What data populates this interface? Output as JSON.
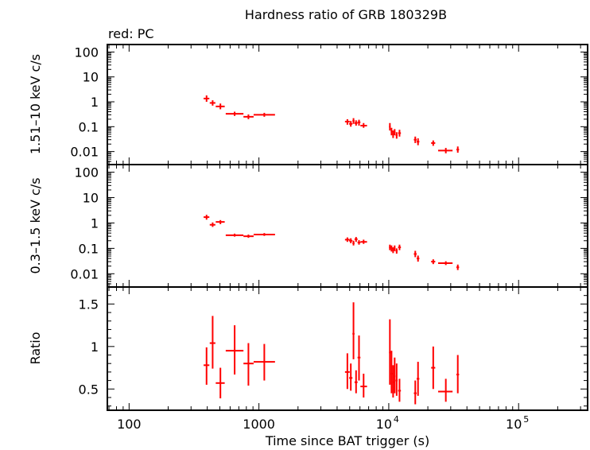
{
  "figure": {
    "title": "Hardness ratio of GRB 180329B",
    "legend_note": "red: PC",
    "xlabel": "Time since BAT trigger (s)"
  },
  "chart_data": [
    {
      "type": "scatter",
      "panel": "hard",
      "ylabel": "1.51–10 keV c/s",
      "xscale": "log",
      "yscale": "log",
      "xlim": [
        68,
        340000
      ],
      "ylim": [
        0.003,
        200
      ],
      "yticks": [
        {
          "value": 100,
          "label": "100"
        },
        {
          "value": 10,
          "label": "10"
        },
        {
          "value": 1,
          "label": "1"
        },
        {
          "value": 0.1,
          "label": "0.1"
        },
        {
          "value": 0.01,
          "label": "0.01"
        }
      ],
      "color": "#ff0000",
      "series": [
        {
          "points": [
            {
              "x": 395,
              "xlo": 375,
              "xhi": 415,
              "y": 1.35,
              "ylo": 1.0,
              "yhi": 1.8
            },
            {
              "x": 440,
              "xlo": 418,
              "xhi": 462,
              "y": 0.9,
              "ylo": 0.7,
              "yhi": 1.15
            },
            {
              "x": 505,
              "xlo": 465,
              "xhi": 545,
              "y": 0.65,
              "ylo": 0.5,
              "yhi": 0.85
            },
            {
              "x": 650,
              "xlo": 555,
              "xhi": 760,
              "y": 0.33,
              "ylo": 0.27,
              "yhi": 0.4
            },
            {
              "x": 830,
              "xlo": 760,
              "xhi": 910,
              "y": 0.25,
              "ylo": 0.2,
              "yhi": 0.31
            },
            {
              "x": 1100,
              "xlo": 910,
              "xhi": 1330,
              "y": 0.3,
              "ylo": 0.25,
              "yhi": 0.36
            },
            {
              "x": 4800,
              "xlo": 4600,
              "xhi": 5000,
              "y": 0.16,
              "ylo": 0.12,
              "yhi": 0.2
            },
            {
              "x": 5100,
              "xlo": 4950,
              "xhi": 5250,
              "y": 0.13,
              "ylo": 0.1,
              "yhi": 0.17
            },
            {
              "x": 5350,
              "xlo": 5250,
              "xhi": 5450,
              "y": 0.17,
              "ylo": 0.13,
              "yhi": 0.22
            },
            {
              "x": 5600,
              "xlo": 5450,
              "xhi": 5750,
              "y": 0.14,
              "ylo": 0.11,
              "yhi": 0.18
            },
            {
              "x": 5900,
              "xlo": 5750,
              "xhi": 6050,
              "y": 0.15,
              "ylo": 0.11,
              "yhi": 0.19
            },
            {
              "x": 6400,
              "xlo": 6050,
              "xhi": 6800,
              "y": 0.11,
              "ylo": 0.09,
              "yhi": 0.14
            },
            {
              "x": 10200,
              "xlo": 10050,
              "xhi": 10350,
              "y": 0.1,
              "ylo": 0.07,
              "yhi": 0.14
            },
            {
              "x": 10500,
              "xlo": 10350,
              "xhi": 10650,
              "y": 0.065,
              "ylo": 0.045,
              "yhi": 0.09
            },
            {
              "x": 10800,
              "xlo": 10650,
              "xhi": 10950,
              "y": 0.05,
              "ylo": 0.035,
              "yhi": 0.07
            },
            {
              "x": 11100,
              "xlo": 10950,
              "xhi": 11250,
              "y": 0.06,
              "ylo": 0.045,
              "yhi": 0.08
            },
            {
              "x": 11500,
              "xlo": 11300,
              "xhi": 11700,
              "y": 0.045,
              "ylo": 0.033,
              "yhi": 0.06
            },
            {
              "x": 12100,
              "xlo": 11800,
              "xhi": 12400,
              "y": 0.055,
              "ylo": 0.04,
              "yhi": 0.075
            },
            {
              "x": 16000,
              "xlo": 15600,
              "xhi": 16400,
              "y": 0.03,
              "ylo": 0.022,
              "yhi": 0.04
            },
            {
              "x": 16800,
              "xlo": 16400,
              "xhi": 17200,
              "y": 0.025,
              "ylo": 0.018,
              "yhi": 0.034
            },
            {
              "x": 22000,
              "xlo": 21200,
              "xhi": 22800,
              "y": 0.022,
              "ylo": 0.017,
              "yhi": 0.028
            },
            {
              "x": 27500,
              "xlo": 24000,
              "xhi": 31000,
              "y": 0.011,
              "ylo": 0.0085,
              "yhi": 0.014
            },
            {
              "x": 34000,
              "xlo": 33200,
              "xhi": 34800,
              "y": 0.012,
              "ylo": 0.009,
              "yhi": 0.016
            }
          ]
        }
      ]
    },
    {
      "type": "scatter",
      "panel": "soft",
      "ylabel": "0.3–1.5 keV c/s",
      "xscale": "log",
      "yscale": "log",
      "xlim": [
        68,
        340000
      ],
      "ylim": [
        0.003,
        200
      ],
      "yticks": [
        {
          "value": 100,
          "label": "100"
        },
        {
          "value": 10,
          "label": "10"
        },
        {
          "value": 1,
          "label": "1"
        },
        {
          "value": 0.1,
          "label": "0.1"
        },
        {
          "value": 0.01,
          "label": "0.01"
        }
      ],
      "color": "#ff0000",
      "series": [
        {
          "points": [
            {
              "x": 395,
              "xlo": 375,
              "xhi": 415,
              "y": 1.7,
              "ylo": 1.35,
              "yhi": 2.1
            },
            {
              "x": 440,
              "xlo": 418,
              "xhi": 462,
              "y": 0.85,
              "ylo": 0.7,
              "yhi": 1.05
            },
            {
              "x": 505,
              "xlo": 465,
              "xhi": 545,
              "y": 1.1,
              "ylo": 0.9,
              "yhi": 1.3
            },
            {
              "x": 650,
              "xlo": 555,
              "xhi": 760,
              "y": 0.33,
              "ylo": 0.29,
              "yhi": 0.38
            },
            {
              "x": 830,
              "xlo": 760,
              "xhi": 910,
              "y": 0.3,
              "ylo": 0.26,
              "yhi": 0.35
            },
            {
              "x": 1100,
              "xlo": 910,
              "xhi": 1330,
              "y": 0.35,
              "ylo": 0.31,
              "yhi": 0.4
            },
            {
              "x": 4800,
              "xlo": 4600,
              "xhi": 5000,
              "y": 0.22,
              "ylo": 0.18,
              "yhi": 0.27
            },
            {
              "x": 5100,
              "xlo": 4950,
              "xhi": 5250,
              "y": 0.2,
              "ylo": 0.16,
              "yhi": 0.25
            },
            {
              "x": 5350,
              "xlo": 5250,
              "xhi": 5450,
              "y": 0.16,
              "ylo": 0.13,
              "yhi": 0.2
            },
            {
              "x": 5600,
              "xlo": 5450,
              "xhi": 5750,
              "y": 0.23,
              "ylo": 0.18,
              "yhi": 0.28
            },
            {
              "x": 5900,
              "xlo": 5750,
              "xhi": 6050,
              "y": 0.17,
              "ylo": 0.14,
              "yhi": 0.21
            },
            {
              "x": 6400,
              "xlo": 6050,
              "xhi": 6800,
              "y": 0.18,
              "ylo": 0.15,
              "yhi": 0.22
            },
            {
              "x": 10200,
              "xlo": 10050,
              "xhi": 10350,
              "y": 0.11,
              "ylo": 0.085,
              "yhi": 0.14
            },
            {
              "x": 10500,
              "xlo": 10350,
              "xhi": 10650,
              "y": 0.1,
              "ylo": 0.075,
              "yhi": 0.13
            },
            {
              "x": 10800,
              "xlo": 10650,
              "xhi": 10950,
              "y": 0.085,
              "ylo": 0.065,
              "yhi": 0.11
            },
            {
              "x": 11100,
              "xlo": 10950,
              "xhi": 11250,
              "y": 0.1,
              "ylo": 0.078,
              "yhi": 0.13
            },
            {
              "x": 11500,
              "xlo": 11300,
              "xhi": 11700,
              "y": 0.08,
              "ylo": 0.062,
              "yhi": 0.1
            },
            {
              "x": 12100,
              "xlo": 11800,
              "xhi": 12400,
              "y": 0.11,
              "ylo": 0.085,
              "yhi": 0.14
            },
            {
              "x": 16000,
              "xlo": 15600,
              "xhi": 16400,
              "y": 0.06,
              "ylo": 0.045,
              "yhi": 0.08
            },
            {
              "x": 16800,
              "xlo": 16400,
              "xhi": 17200,
              "y": 0.04,
              "ylo": 0.03,
              "yhi": 0.052
            },
            {
              "x": 22000,
              "xlo": 21200,
              "xhi": 22800,
              "y": 0.03,
              "ylo": 0.024,
              "yhi": 0.037
            },
            {
              "x": 27500,
              "xlo": 24000,
              "xhi": 31000,
              "y": 0.026,
              "ylo": 0.022,
              "yhi": 0.031
            },
            {
              "x": 34000,
              "xlo": 33200,
              "xhi": 34800,
              "y": 0.018,
              "ylo": 0.014,
              "yhi": 0.023
            }
          ]
        }
      ]
    },
    {
      "type": "scatter",
      "panel": "ratio",
      "ylabel": "Ratio",
      "xscale": "log",
      "yscale": "linear",
      "xlim": [
        68,
        340000
      ],
      "ylim": [
        0.25,
        1.7
      ],
      "yticks": [
        {
          "value": 1.5,
          "label": "1.5"
        },
        {
          "value": 1,
          "label": "1"
        },
        {
          "value": 0.5,
          "label": "0.5"
        }
      ],
      "xticks": [
        {
          "value": 100,
          "label": "100"
        },
        {
          "value": 1000,
          "label": "1000"
        },
        {
          "value": 10000,
          "base": "10",
          "exp": "4"
        },
        {
          "value": 100000,
          "base": "10",
          "exp": "5"
        }
      ],
      "color": "#ff0000",
      "series": [
        {
          "points": [
            {
              "x": 395,
              "xlo": 375,
              "xhi": 415,
              "y": 0.78,
              "ylo": 0.55,
              "yhi": 0.99
            },
            {
              "x": 440,
              "xlo": 418,
              "xhi": 462,
              "y": 1.04,
              "ylo": 0.74,
              "yhi": 1.36
            },
            {
              "x": 505,
              "xlo": 465,
              "xhi": 545,
              "y": 0.57,
              "ylo": 0.39,
              "yhi": 0.75
            },
            {
              "x": 650,
              "xlo": 555,
              "xhi": 760,
              "y": 0.95,
              "ylo": 0.67,
              "yhi": 1.25
            },
            {
              "x": 830,
              "xlo": 760,
              "xhi": 910,
              "y": 0.8,
              "ylo": 0.54,
              "yhi": 1.04
            },
            {
              "x": 1100,
              "xlo": 910,
              "xhi": 1330,
              "y": 0.82,
              "ylo": 0.6,
              "yhi": 1.03
            },
            {
              "x": 4800,
              "xlo": 4600,
              "xhi": 5000,
              "y": 0.7,
              "ylo": 0.5,
              "yhi": 0.92
            },
            {
              "x": 5100,
              "xlo": 4950,
              "xhi": 5250,
              "y": 0.63,
              "ylo": 0.48,
              "yhi": 0.8
            },
            {
              "x": 5350,
              "xlo": 5250,
              "xhi": 5450,
              "y": 1.15,
              "ylo": 0.85,
              "yhi": 1.52
            },
            {
              "x": 5600,
              "xlo": 5450,
              "xhi": 5750,
              "y": 0.58,
              "ylo": 0.45,
              "yhi": 0.72
            },
            {
              "x": 5900,
              "xlo": 5750,
              "xhi": 6050,
              "y": 0.87,
              "ylo": 0.6,
              "yhi": 1.13
            },
            {
              "x": 6400,
              "xlo": 6050,
              "xhi": 6800,
              "y": 0.53,
              "ylo": 0.4,
              "yhi": 0.68
            },
            {
              "x": 10200,
              "xlo": 10050,
              "xhi": 10350,
              "y": 0.93,
              "ylo": 0.55,
              "yhi": 1.32
            },
            {
              "x": 10500,
              "xlo": 10350,
              "xhi": 10650,
              "y": 0.68,
              "ylo": 0.45,
              "yhi": 0.95
            },
            {
              "x": 10800,
              "xlo": 10650,
              "xhi": 10950,
              "y": 0.58,
              "ylo": 0.4,
              "yhi": 0.78
            },
            {
              "x": 11100,
              "xlo": 10950,
              "xhi": 11250,
              "y": 0.65,
              "ylo": 0.45,
              "yhi": 0.87
            },
            {
              "x": 11500,
              "xlo": 11300,
              "xhi": 11700,
              "y": 0.6,
              "ylo": 0.42,
              "yhi": 0.8
            },
            {
              "x": 12100,
              "xlo": 11800,
              "xhi": 12400,
              "y": 0.48,
              "ylo": 0.35,
              "yhi": 0.62
            },
            {
              "x": 16000,
              "xlo": 15600,
              "xhi": 16400,
              "y": 0.45,
              "ylo": 0.32,
              "yhi": 0.6
            },
            {
              "x": 16800,
              "xlo": 16400,
              "xhi": 17200,
              "y": 0.62,
              "ylo": 0.42,
              "yhi": 0.82
            },
            {
              "x": 22000,
              "xlo": 21200,
              "xhi": 22800,
              "y": 0.75,
              "ylo": 0.5,
              "yhi": 1.0
            },
            {
              "x": 27500,
              "xlo": 24000,
              "xhi": 31000,
              "y": 0.47,
              "ylo": 0.35,
              "yhi": 0.62
            },
            {
              "x": 34000,
              "xlo": 33200,
              "xhi": 34800,
              "y": 0.67,
              "ylo": 0.45,
              "yhi": 0.9
            }
          ]
        }
      ]
    }
  ]
}
